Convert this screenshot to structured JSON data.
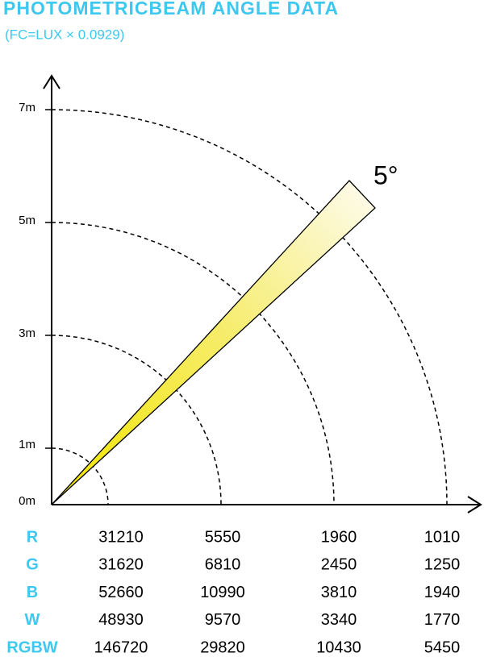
{
  "header": {
    "title": "PHOTOMETRICBEAM ANGLE DATA",
    "subtitle": "(FC=LUX × 0.0929)"
  },
  "diagram": {
    "distance_labels": [
      "0m",
      "1m",
      "3m",
      "5m",
      "7m"
    ],
    "angle_label": "5°"
  },
  "table": {
    "rows": [
      [
        "R",
        31210,
        5550,
        1960,
        1010
      ],
      [
        "G",
        31620,
        6810,
        2450,
        1250
      ],
      [
        "B",
        52660,
        10990,
        3810,
        1940
      ],
      [
        "W",
        48930,
        9570,
        3340,
        1770
      ],
      [
        "RGBW",
        146720,
        29820,
        10430,
        5450
      ]
    ]
  }
}
